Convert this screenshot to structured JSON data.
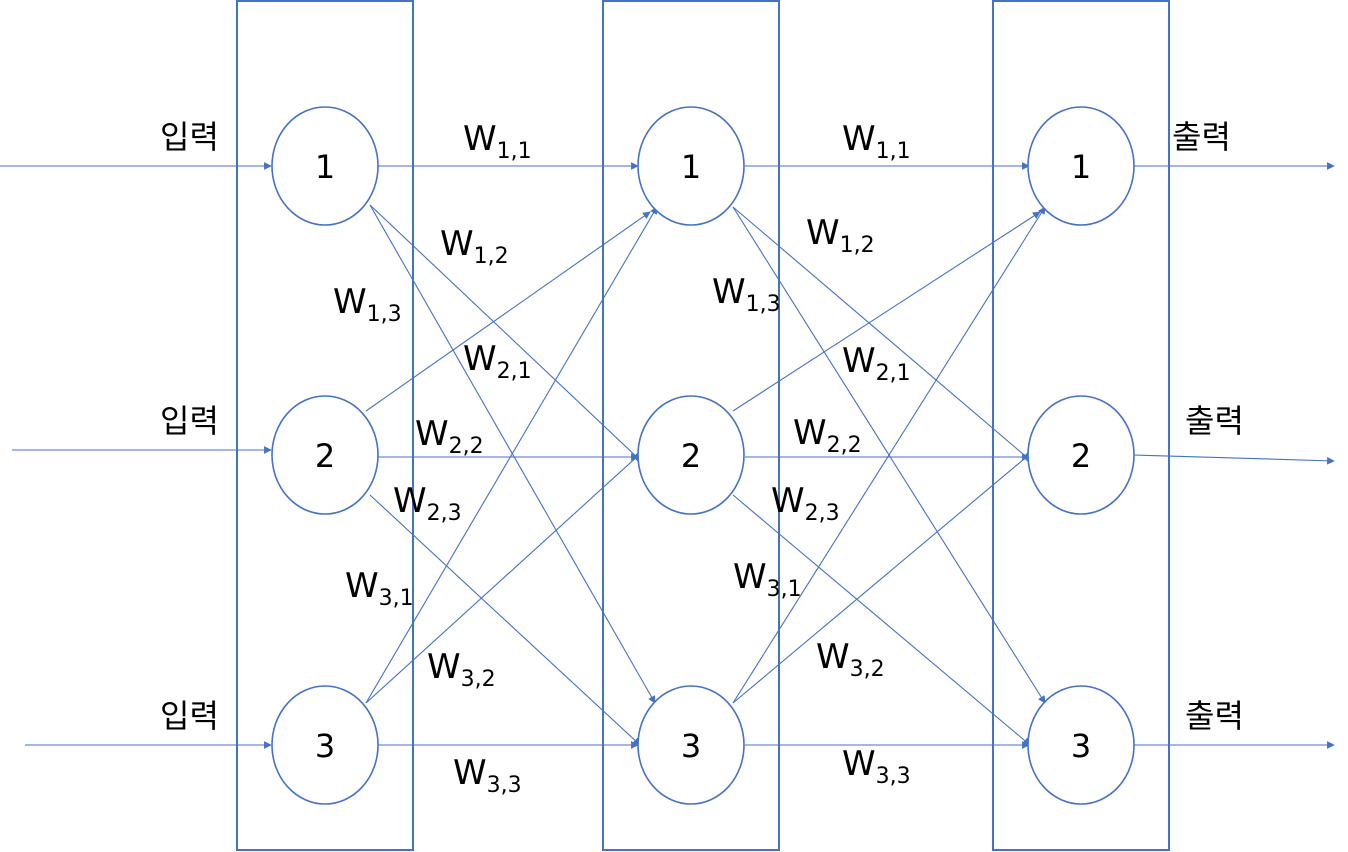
{
  "colors": {
    "stroke": "#4472c4",
    "text": "#000000",
    "background": "#ffffff"
  },
  "io": {
    "input_label": "입력",
    "output_label": "출력"
  },
  "layers": [
    {
      "name": "input",
      "nodes": [
        "1",
        "2",
        "3"
      ]
    },
    {
      "name": "hidden",
      "nodes": [
        "1",
        "2",
        "3"
      ]
    },
    {
      "name": "output",
      "nodes": [
        "1",
        "2",
        "3"
      ]
    }
  ],
  "weights": {
    "symbol": "W",
    "layer1": {
      "w11": "1,1",
      "w12": "1,2",
      "w13": "1,3",
      "w21": "2,1",
      "w22": "2,2",
      "w23": "2,3",
      "w31": "3,1",
      "w32": "3,2",
      "w33": "3,3"
    },
    "layer2": {
      "w11": "1,1",
      "w12": "1,2",
      "w13": "1,3",
      "w21": "2,1",
      "w22": "2,2",
      "w23": "2,3",
      "w31": "3,1",
      "w32": "3,2",
      "w33": "3,3"
    }
  }
}
